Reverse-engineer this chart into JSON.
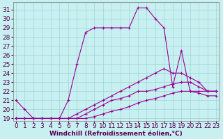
{
  "xlabel": "Windchill (Refroidissement éolien,°C)",
  "ylabel": "",
  "background_color": "#c8f0f0",
  "line_color": "#990099",
  "xlim": [
    -0.3,
    23.3
  ],
  "ylim": [
    18.7,
    31.8
  ],
  "xticks": [
    0,
    1,
    2,
    3,
    4,
    5,
    6,
    7,
    8,
    9,
    10,
    11,
    12,
    13,
    14,
    15,
    16,
    17,
    18,
    19,
    20,
    21,
    22,
    23
  ],
  "yticks": [
    19,
    20,
    21,
    22,
    23,
    24,
    25,
    26,
    27,
    28,
    29,
    30,
    31
  ],
  "line1_x": [
    0,
    1,
    2,
    3,
    4,
    5,
    6,
    7,
    8,
    9,
    10,
    11,
    12,
    13,
    14,
    15,
    16,
    17,
    18,
    19,
    20,
    21,
    22,
    23
  ],
  "line1_y": [
    21,
    20,
    19,
    19,
    19,
    19,
    21,
    25,
    28.5,
    29,
    29,
    29,
    29,
    29,
    31.2,
    31.2,
    30,
    29,
    22.5,
    26.5,
    22,
    22,
    22,
    22
  ],
  "line2_x": [
    0,
    1,
    2,
    3,
    4,
    5,
    6,
    7,
    8,
    9,
    10,
    11,
    12,
    13,
    14,
    15,
    16,
    17,
    18,
    19,
    20,
    21,
    22,
    23
  ],
  "line2_y": [
    19,
    19,
    19,
    19,
    19,
    19,
    19,
    19.5,
    20,
    20.5,
    21,
    21.5,
    22,
    22.5,
    23,
    23.5,
    24,
    24.5,
    24,
    24,
    23.5,
    23,
    22,
    22
  ],
  "line3_x": [
    0,
    1,
    2,
    3,
    4,
    5,
    6,
    7,
    8,
    9,
    10,
    11,
    12,
    13,
    14,
    15,
    16,
    17,
    18,
    19,
    20,
    21,
    22,
    23
  ],
  "line3_y": [
    19,
    19,
    19,
    19,
    19,
    19,
    19,
    19,
    19.5,
    20,
    20.5,
    21,
    21.2,
    21.5,
    22,
    22,
    22.2,
    22.5,
    22.8,
    23,
    23,
    22.5,
    22,
    22
  ],
  "line4_x": [
    0,
    1,
    2,
    3,
    4,
    5,
    6,
    7,
    8,
    9,
    10,
    11,
    12,
    13,
    14,
    15,
    16,
    17,
    18,
    19,
    20,
    21,
    22,
    23
  ],
  "line4_y": [
    19,
    19,
    19,
    19,
    19,
    19,
    19,
    19,
    19,
    19.2,
    19.5,
    19.8,
    20,
    20.3,
    20.7,
    21,
    21.2,
    21.5,
    21.8,
    22,
    22,
    21.8,
    21.5,
    21.5
  ],
  "font_size": 6.5
}
